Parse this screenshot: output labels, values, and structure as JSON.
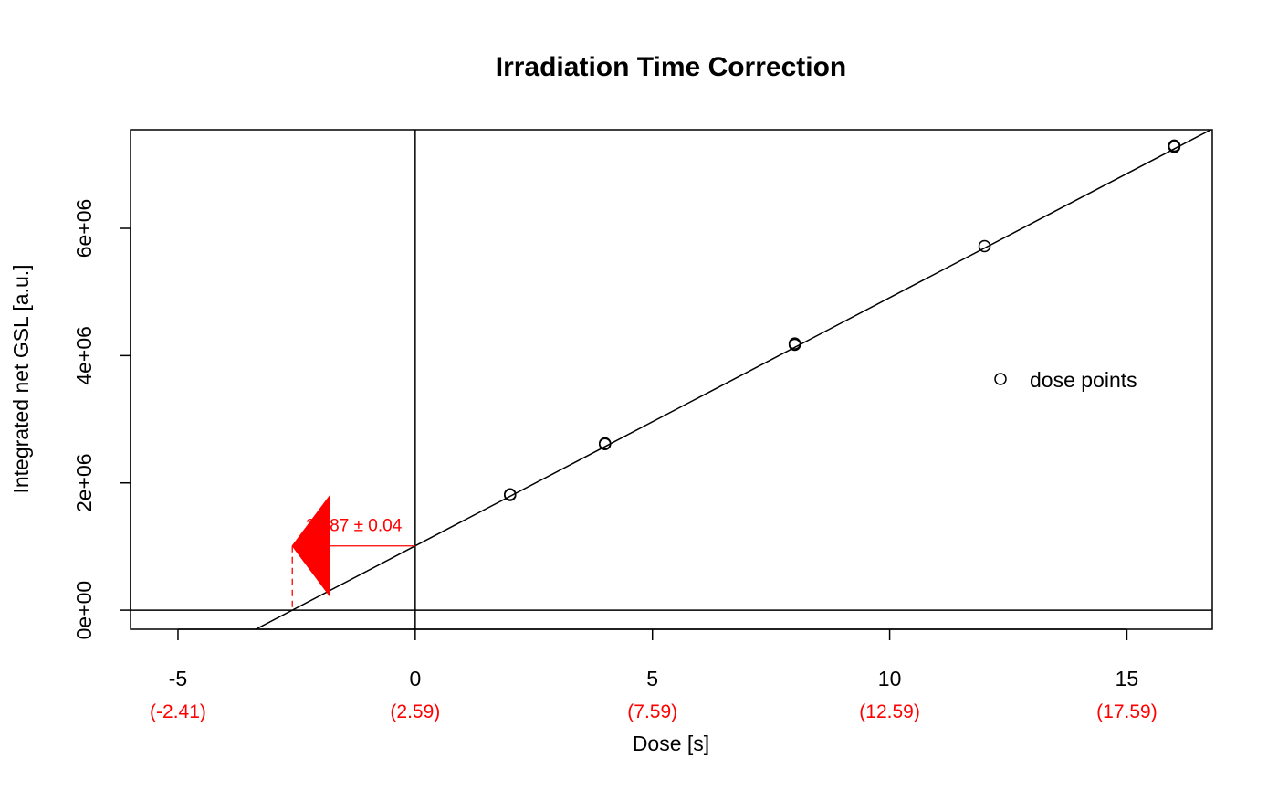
{
  "chart_data": {
    "type": "scatter",
    "title": "Irradiation Time Correction",
    "xlabel": "Dose [s]",
    "ylabel": "Integrated net GSL [a.u.]",
    "xlim": [
      -6.0,
      16.8
    ],
    "ylim": [
      -300000,
      7550000
    ],
    "x_ticks": [
      -5,
      0,
      5,
      10,
      15
    ],
    "x_tick_labels": [
      "-5",
      "0",
      "5",
      "10",
      "15"
    ],
    "x_secondary_tick_labels": [
      "(-2.41)",
      "(2.59)",
      "(7.59)",
      "(12.59)",
      "(17.59)"
    ],
    "y_ticks": [
      0,
      2000000,
      4000000,
      6000000
    ],
    "y_tick_labels": [
      "0e+00",
      "2e+06",
      "4e+06",
      "6e+06"
    ],
    "series": [
      {
        "name": "dose points",
        "x": [
          2,
          2,
          4,
          4,
          8,
          8,
          12,
          16,
          16
        ],
        "y": [
          1810000,
          1820000,
          2610000,
          2620000,
          4170000,
          4190000,
          5720000,
          7280000,
          7300000
        ]
      }
    ],
    "fit_line": {
      "slope": 390000,
      "intercept": 1010000
    },
    "zero_lines": {
      "x": 0,
      "y": 0
    },
    "correction": {
      "value": -2.59,
      "label": "2.587 ± 0.04",
      "error_x_range": [
        -2.59,
        -1.8
      ],
      "color": "#ff0000"
    },
    "legend": {
      "position": "right",
      "entries": [
        "dose points"
      ]
    },
    "grid": false
  }
}
